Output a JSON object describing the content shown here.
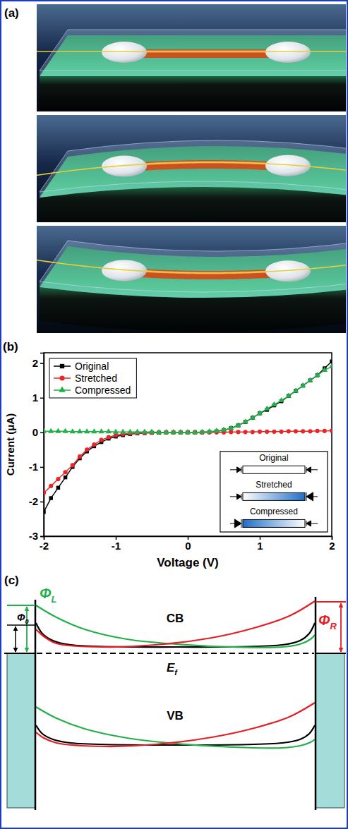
{
  "chart_data": {
    "type": "line",
    "panel_label": "(b)",
    "x_label": "Voltage (V)",
    "y_label": "Current (μA)",
    "x": [
      -2.0,
      -1.9,
      -1.8,
      -1.7,
      -1.6,
      -1.5,
      -1.4,
      -1.3,
      -1.2,
      -1.1,
      -1.0,
      -0.9,
      -0.8,
      -0.7,
      -0.6,
      -0.5,
      -0.4,
      -0.3,
      -0.2,
      -0.1,
      0,
      0.1,
      0.2,
      0.3,
      0.4,
      0.5,
      0.6,
      0.7,
      0.8,
      0.9,
      1.0,
      1.1,
      1.2,
      1.3,
      1.4,
      1.5,
      1.6,
      1.7,
      1.8,
      1.9,
      2.0
    ],
    "series": [
      {
        "name": "Original",
        "color": "#000000",
        "marker": "square",
        "line_style": "solid",
        "values": [
          -2.3,
          -1.9,
          -1.6,
          -1.3,
          -1.0,
          -0.75,
          -0.55,
          -0.4,
          -0.28,
          -0.18,
          -0.12,
          -0.08,
          -0.05,
          -0.03,
          -0.02,
          -0.01,
          -0.01,
          0,
          0,
          0,
          0,
          0,
          0,
          0.01,
          0.03,
          0.06,
          0.12,
          0.2,
          0.3,
          0.42,
          0.55,
          0.65,
          0.78,
          0.9,
          1.05,
          1.2,
          1.35,
          1.5,
          1.65,
          1.85,
          2.05
        ]
      },
      {
        "name": "Stretched",
        "color": "#e8262a",
        "marker": "circle",
        "line_style": "solid",
        "values": [
          -1.75,
          -1.55,
          -1.35,
          -1.15,
          -0.95,
          -0.7,
          -0.5,
          -0.35,
          -0.22,
          -0.14,
          -0.08,
          -0.05,
          -0.03,
          -0.02,
          -0.01,
          -0.01,
          0,
          0,
          0,
          0,
          0,
          0,
          0,
          0,
          0,
          0,
          0.01,
          0.01,
          0.01,
          0.01,
          0.02,
          0.02,
          0.02,
          0.02,
          0.03,
          0.03,
          0.03,
          0.03,
          0.04,
          0.04,
          0.05
        ]
      },
      {
        "name": "Compressed",
        "color": "#22b04b",
        "marker": "triangle",
        "line_style": "solid",
        "values": [
          0.03,
          0.03,
          0.03,
          0.03,
          0.02,
          0.02,
          0.02,
          0.02,
          0.02,
          0.02,
          0.01,
          0.01,
          0.01,
          0.01,
          0.01,
          0.01,
          0,
          0,
          0,
          0,
          0,
          0,
          0.01,
          0.02,
          0.04,
          0.07,
          0.12,
          0.2,
          0.3,
          0.42,
          0.55,
          0.68,
          0.8,
          0.92,
          1.05,
          1.2,
          1.35,
          1.5,
          1.65,
          1.8,
          1.9
        ]
      }
    ],
    "xlim": [
      -2,
      2
    ],
    "xticks": [
      -2,
      -1,
      0,
      1,
      2
    ],
    "ylim": [
      -3,
      2.3
    ],
    "yticks": [
      -3,
      -2,
      -1,
      0,
      1,
      2
    ],
    "grid": false,
    "legend": "upper left",
    "annotations": [
      "Original",
      "Stretched",
      "Compressed"
    ]
  },
  "panel_a": {
    "label": "(a)"
  },
  "panel_c": {
    "label": "(c)",
    "band_labels": {
      "conduction": "CB",
      "valence": "VB"
    },
    "fermi_level": {
      "base": "E",
      "sub": "f"
    },
    "barriers": {
      "left": {
        "base": "Φ",
        "sub": "L",
        "color": "#22b04b"
      },
      "zero": {
        "base": "Φ",
        "sub": "0"
      },
      "right": {
        "base": "Φ",
        "sub": "R",
        "color": "#e31e24"
      }
    }
  }
}
